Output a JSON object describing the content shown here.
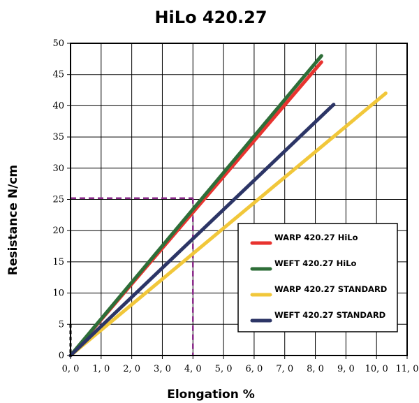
{
  "chart_data": {
    "type": "line",
    "title": "HiLo 420.27",
    "xlabel": "Elongation %",
    "ylabel": "Resistance N/cm",
    "xlim": [
      0,
      11
    ],
    "ylim": [
      0,
      50
    ],
    "x_ticks": [
      {
        "value": 0,
        "label": "0, 0"
      },
      {
        "value": 1,
        "label": "1, 0"
      },
      {
        "value": 2,
        "label": "2, 0"
      },
      {
        "value": 3,
        "label": "3, 0"
      },
      {
        "value": 4,
        "label": "4, 0"
      },
      {
        "value": 5,
        "label": "5, 0"
      },
      {
        "value": 6,
        "label": "6, 0"
      },
      {
        "value": 7,
        "label": "7, 0"
      },
      {
        "value": 8,
        "label": "8, 0"
      },
      {
        "value": 9,
        "label": "9, 0"
      },
      {
        "value": 10,
        "label": "10, 0"
      },
      {
        "value": 11,
        "label": "11, 0"
      }
    ],
    "y_ticks": [
      {
        "value": 0,
        "label": "0"
      },
      {
        "value": 5,
        "label": "5"
      },
      {
        "value": 10,
        "label": "10"
      },
      {
        "value": 15,
        "label": "15"
      },
      {
        "value": 20,
        "label": "20"
      },
      {
        "value": 25,
        "label": "25"
      },
      {
        "value": 30,
        "label": "30"
      },
      {
        "value": 35,
        "label": "35"
      },
      {
        "value": 40,
        "label": "40"
      },
      {
        "value": 45,
        "label": "45"
      },
      {
        "value": 50,
        "label": "50"
      }
    ],
    "grid": true,
    "legend_position": "lower-right",
    "series": [
      {
        "name": "WARP 420.27 HiLo",
        "color": "#e8332f",
        "x": [
          0,
          8.2
        ],
        "y": [
          0,
          47
        ]
      },
      {
        "name": "WEFT 420.27 HiLo",
        "color": "#2e6e38",
        "x": [
          0,
          8.2
        ],
        "y": [
          0,
          48
        ]
      },
      {
        "name": "WARP 420.27 STANDARD",
        "color": "#f1c73a",
        "x": [
          0,
          10.3
        ],
        "y": [
          0,
          42
        ]
      },
      {
        "name": "WEFT 420.27 STANDARD",
        "color": "#2c3566",
        "x": [
          0,
          8.6
        ],
        "y": [
          0,
          40.2
        ]
      }
    ],
    "annotations": [
      {
        "type": "dashed-guide",
        "color": "#8a2a8a",
        "x": 4,
        "y": 25.2
      },
      {
        "type": "dashed-segment",
        "color": "#000000",
        "x": 0,
        "y_range": [
          0,
          5
        ]
      }
    ]
  }
}
